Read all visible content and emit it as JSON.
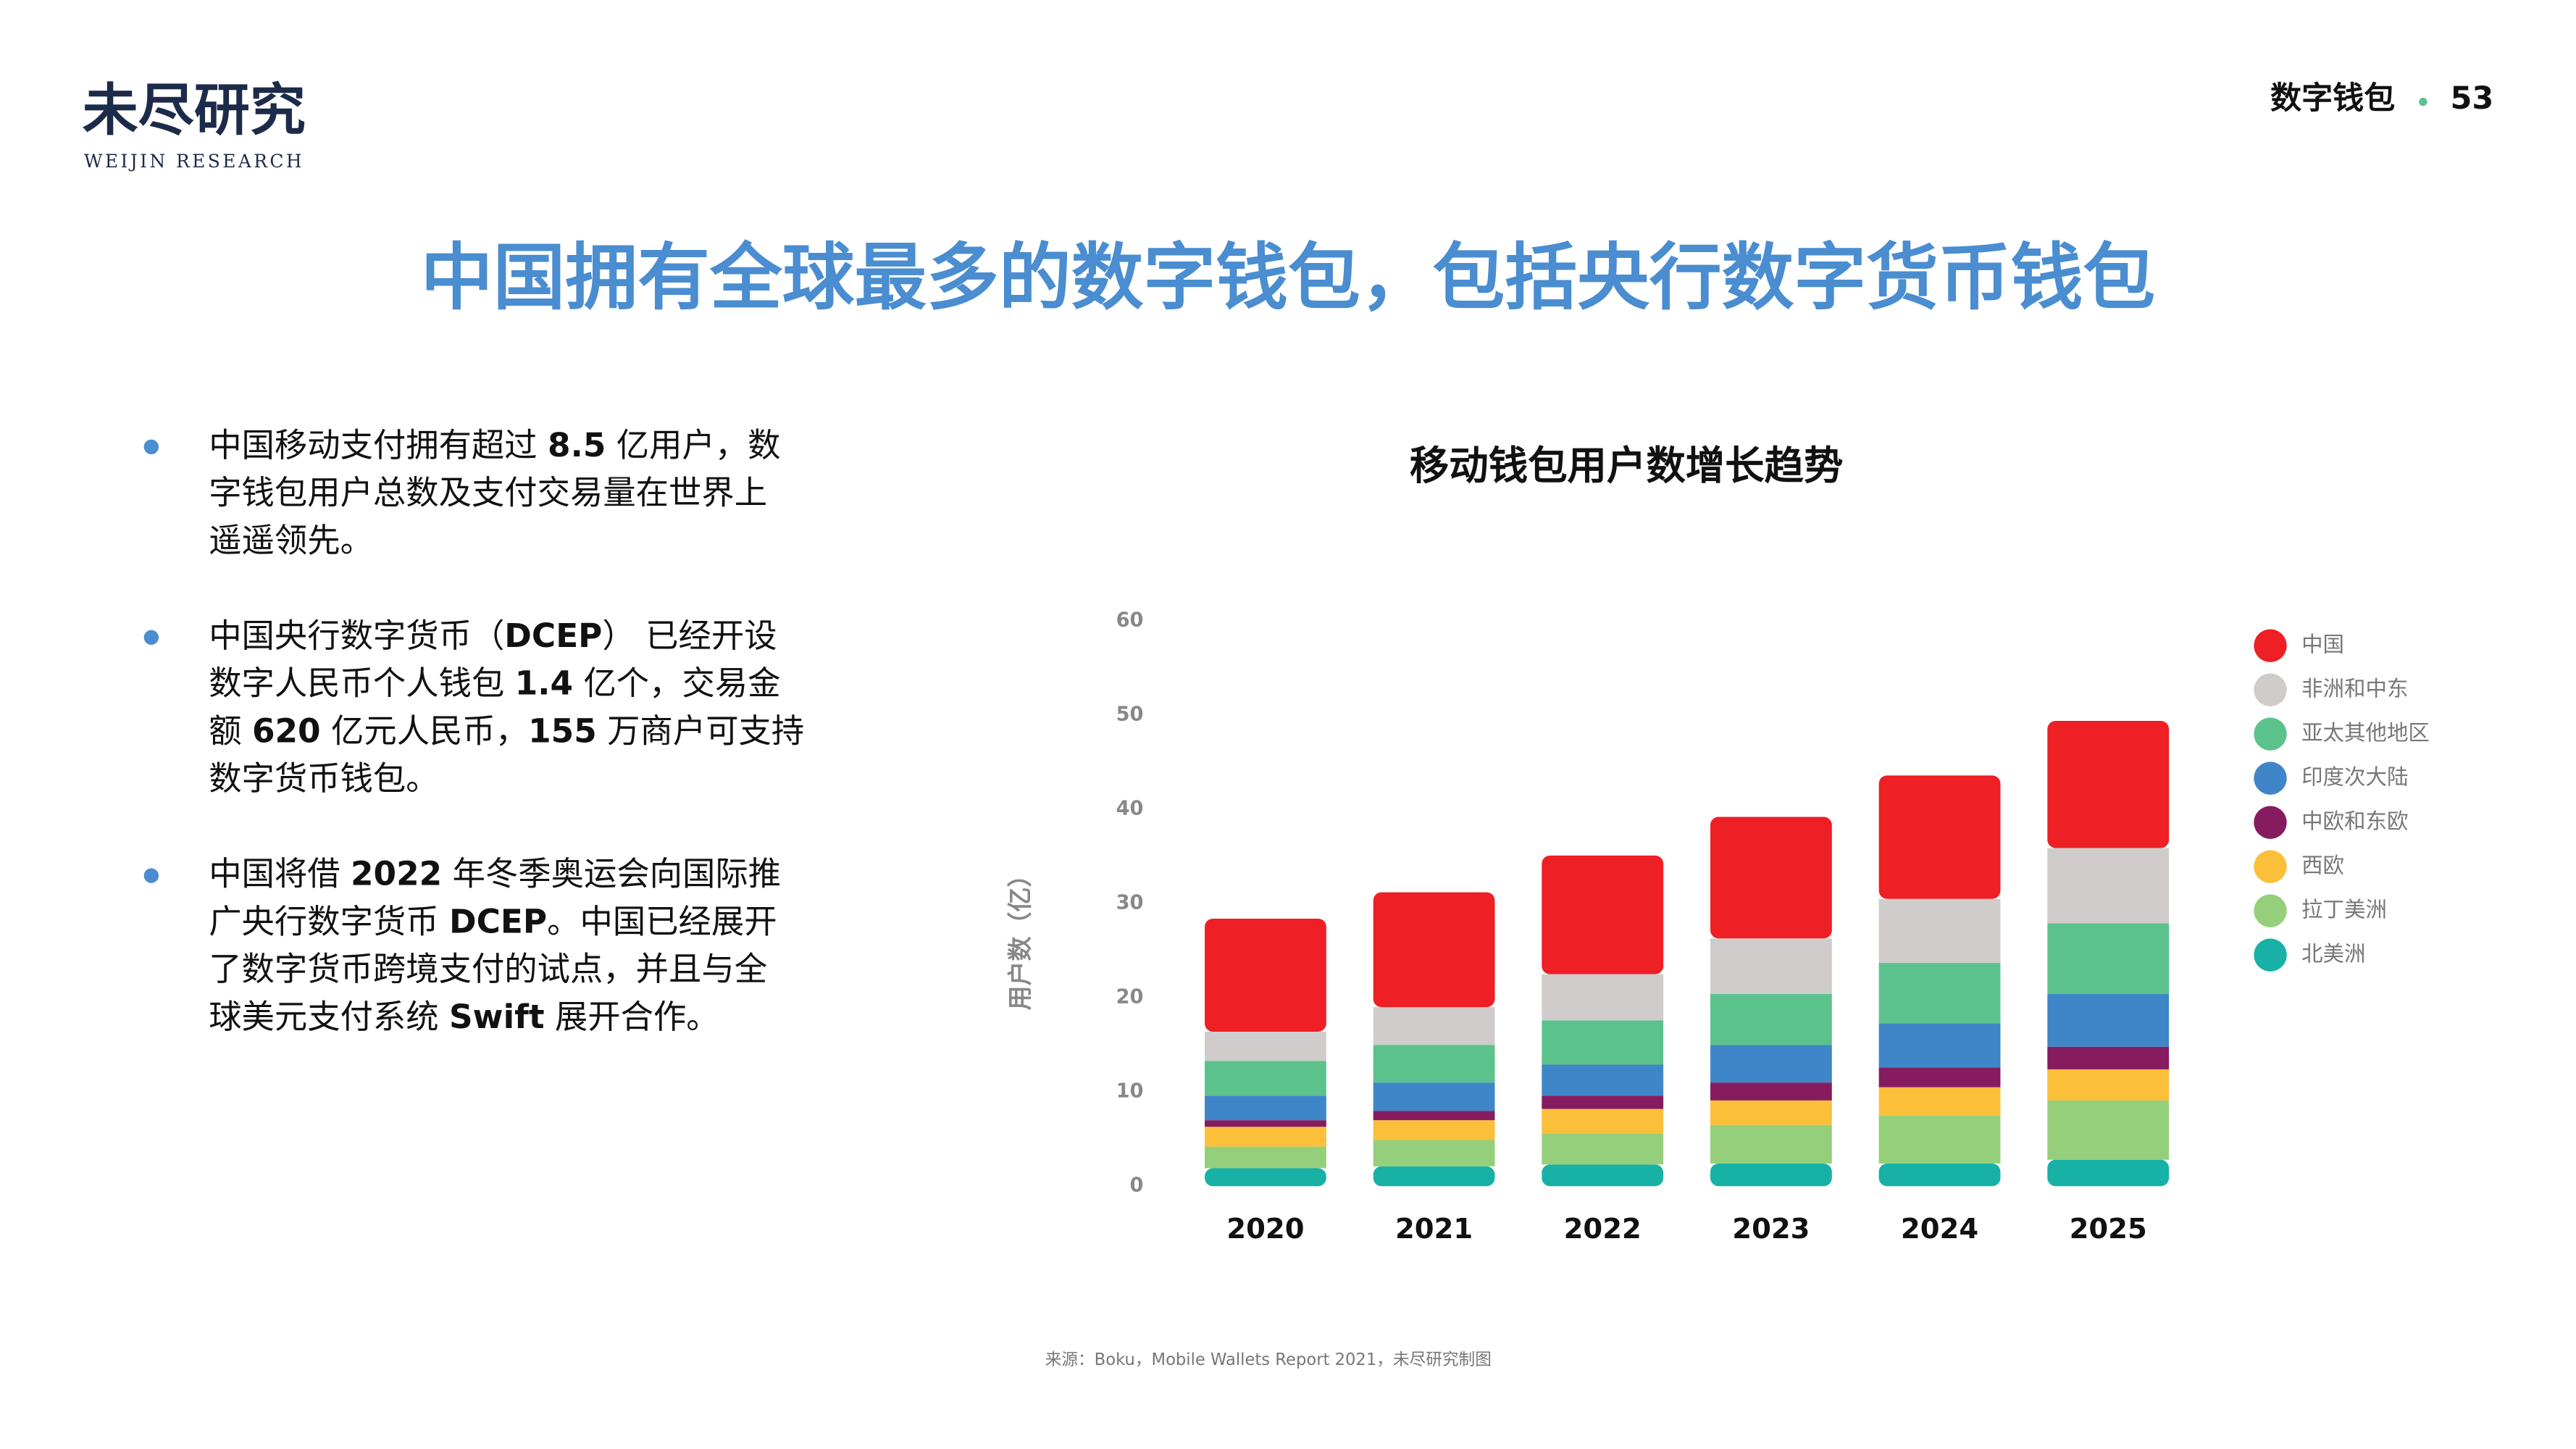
{
  "header": {
    "logo": "未尽研究",
    "logo_sub": "WEIJIN RESEARCH",
    "section": "数字钱包",
    "page": "53"
  },
  "title": "中国拥有全球最多的数字钱包，包括央行数字货币钱包",
  "bullets": [
    {
      "lines": [
        [
          "中国移动支付拥有超过 ",
          {
            "text": "8.5",
            "bold": true
          },
          " 亿用户，数"
        ],
        [
          "字钱包用户总数及支付交易量在世界上"
        ],
        [
          "遥遥领先。"
        ]
      ]
    },
    {
      "lines": [
        [
          "中国央行数字货币（",
          {
            "text": "DCEP",
            "bold": true
          },
          "） 已经开设"
        ],
        [
          "数字人民币个人钱包 ",
          {
            "text": "1.4",
            "bold": true
          },
          " 亿个，交易金"
        ],
        [
          "额 ",
          {
            "text": "620",
            "bold": true
          },
          " 亿元人民币，",
          {
            "text": "155",
            "bold": true
          },
          " 万商户可支持"
        ],
        [
          "数字货币钱包。"
        ]
      ]
    },
    {
      "lines": [
        [
          "中国将借 ",
          {
            "text": "2022",
            "bold": true
          },
          " 年冬季奥运会向国际推"
        ],
        [
          "广央行数字货币 ",
          {
            "text": "DCEP",
            "bold": true
          },
          "。中国已经展开"
        ],
        [
          "了数字货币跨境支付的试点，并且与全"
        ],
        [
          "球美元支付系统 ",
          {
            "text": "Swift",
            "bold": true
          },
          " 展开合作。"
        ]
      ]
    }
  ],
  "source": "来源：Boku，Mobile Wallets Report 2021，未尽研究制图",
  "chart_data": {
    "type": "stacked-bar",
    "title": "移动钱包用户数增长趋势",
    "y_label": "用户数（亿）",
    "categories": [
      "2020",
      "2021",
      "2022",
      "2023",
      "2024",
      "2025"
    ],
    "ylim": [
      0,
      60
    ],
    "yticks": [
      0,
      10,
      20,
      30,
      40,
      50,
      60
    ],
    "grid": false,
    "legend": "right",
    "series": [
      {
        "name": "中国",
        "color": "#ee1f25",
        "values": [
          12.0,
          12.2,
          12.6,
          12.9,
          13.1,
          13.5
        ]
      },
      {
        "name": "非洲和中东",
        "color": "#cfcccb",
        "values": [
          3.1,
          4.0,
          4.9,
          5.9,
          6.8,
          8.0
        ]
      },
      {
        "name": "亚太其他地区",
        "color": "#5cc28c",
        "values": [
          3.7,
          4.0,
          4.7,
          5.4,
          6.4,
          7.5
        ]
      },
      {
        "name": "印度次大陆",
        "color": "#3f86c8",
        "values": [
          2.6,
          3.0,
          3.3,
          4.0,
          4.7,
          5.6
        ]
      },
      {
        "name": "中欧和东欧",
        "color": "#861c5f",
        "values": [
          0.7,
          1.0,
          1.4,
          1.9,
          2.1,
          2.4
        ]
      },
      {
        "name": "西欧",
        "color": "#fbbf3a",
        "values": [
          2.1,
          2.1,
          2.6,
          2.6,
          3.0,
          3.3
        ]
      },
      {
        "name": "拉丁美洲",
        "color": "#95cf7b",
        "values": [
          2.3,
          2.8,
          3.3,
          4.1,
          5.1,
          6.3
        ]
      },
      {
        "name": "北美洲",
        "color": "#17b1a5",
        "values": [
          1.9,
          2.1,
          2.3,
          2.4,
          2.4,
          2.8
        ]
      }
    ]
  }
}
